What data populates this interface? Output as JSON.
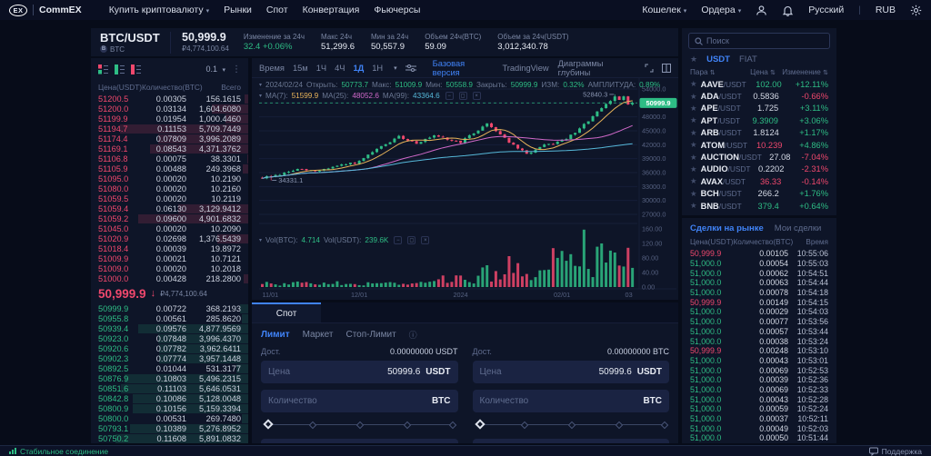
{
  "colors": {
    "green": "#2ebd85",
    "red": "#f0486d",
    "blue": "#4083f7",
    "ma7": "#e8b45a",
    "ma25": "#d069c9",
    "ma99": "#56b8d9",
    "grid": "#161e38",
    "axis_text": "#566180"
  },
  "topnav": {
    "logo": "CommEX",
    "items": [
      {
        "label": "Купить криптовалюту",
        "caret": true
      },
      {
        "label": "Рынки"
      },
      {
        "label": "Спот"
      },
      {
        "label": "Конвертация"
      },
      {
        "label": "Фьючерсы"
      }
    ],
    "right": {
      "wallet": "Кошелек",
      "orders": "Ордера",
      "lang": "Русский",
      "currency": "RUB"
    }
  },
  "ticker": {
    "pair": "BTC/USDT",
    "base": "BTC",
    "price": "50,999.9",
    "fiat": "₽4,774,100.64",
    "stats": [
      {
        "label": "Изменение за 24ч",
        "value": "32.4 +0.06%",
        "cls": "green"
      },
      {
        "label": "Макс 24ч",
        "value": "51,299.6"
      },
      {
        "label": "Мин за 24ч",
        "value": "50,557.9"
      },
      {
        "label": "Объем 24ч(BTC)",
        "value": "59.09"
      },
      {
        "label": "Объем за 24ч(USDT)",
        "value": "3,012,340.78"
      }
    ]
  },
  "orderbook": {
    "precision": "0.1",
    "columns": [
      "Цена(USDT)",
      "Количество(BTC)",
      "Всего"
    ],
    "asks": [
      [
        "51200.5",
        "0.00305",
        "156.1615"
      ],
      [
        "51200.0",
        "0.03134",
        "1,604.6080"
      ],
      [
        "51199.9",
        "0.01954",
        "1,000.4460"
      ],
      [
        "51194.7",
        "0.11153",
        "5,709.7449"
      ],
      [
        "51174.4",
        "0.07809",
        "3,996.2089"
      ],
      [
        "51169.1",
        "0.08543",
        "4,371.3762"
      ],
      [
        "51106.8",
        "0.00075",
        "38.3301"
      ],
      [
        "51105.9",
        "0.00488",
        "249.3968"
      ],
      [
        "51095.0",
        "0.00020",
        "10.2190"
      ],
      [
        "51080.0",
        "0.00020",
        "10.2160"
      ],
      [
        "51059.5",
        "0.00020",
        "10.2119"
      ],
      [
        "51059.4",
        "0.06130",
        "3,129.9412"
      ],
      [
        "51059.2",
        "0.09600",
        "4,901.6832"
      ],
      [
        "51045.0",
        "0.00020",
        "10.2090"
      ],
      [
        "51020.9",
        "0.02698",
        "1,376.5439"
      ],
      [
        "51018.4",
        "0.00039",
        "19.8972"
      ],
      [
        "51009.9",
        "0.00021",
        "10.7121"
      ],
      [
        "51009.0",
        "0.00020",
        "10.2018"
      ],
      [
        "51000.0",
        "0.00428",
        "218.2800"
      ]
    ],
    "mid": {
      "price": "50,999.9",
      "direction": "down",
      "fiat": "₽4,774,100.64"
    },
    "bids": [
      [
        "50999.9",
        "0.00722",
        "368.2193"
      ],
      [
        "50955.8",
        "0.00561",
        "285.8620"
      ],
      [
        "50939.4",
        "0.09576",
        "4,877.9569"
      ],
      [
        "50923.0",
        "0.07848",
        "3,996.4370"
      ],
      [
        "50920.6",
        "0.07782",
        "3,962.6411"
      ],
      [
        "50902.3",
        "0.07774",
        "3,957.1448"
      ],
      [
        "50892.5",
        "0.01044",
        "531.3177"
      ],
      [
        "50876.9",
        "0.10803",
        "5,496.2315"
      ],
      [
        "50851.6",
        "0.11103",
        "5,646.0531"
      ],
      [
        "50842.8",
        "0.10086",
        "5,128.0048"
      ],
      [
        "50800.9",
        "0.10156",
        "5,159.3394"
      ],
      [
        "50800.0",
        "0.00531",
        "269.7480"
      ],
      [
        "50793.1",
        "0.10389",
        "5,276.8952"
      ],
      [
        "50750.2",
        "0.11608",
        "5,891.0832"
      ]
    ]
  },
  "chart": {
    "intervals": [
      "Время",
      "15м",
      "1Ч",
      "4Ч",
      "1Д",
      "1Н"
    ],
    "active_interval": "1Д",
    "views": [
      "Базовая версия",
      "TradingView",
      "Диаграммы глубины"
    ],
    "active_view": "Базовая версия",
    "ohlc_legend": {
      "date": "2024/02/24",
      "items": [
        {
          "label": "Открыть:",
          "value": "50773.7"
        },
        {
          "label": "Макс:",
          "value": "51009.9"
        },
        {
          "label": "Мин:",
          "value": "50558.9"
        },
        {
          "label": "Закрыть:",
          "value": "50999.9"
        },
        {
          "label": "ИЗМ:",
          "value": "0.32%"
        },
        {
          "label": "АМПЛИТУДА:",
          "value": "0.89%"
        }
      ]
    },
    "ma_legend": [
      {
        "label": "MA(7):",
        "value": "51599.9",
        "color": "#e8b45a"
      },
      {
        "label": "MA(25):",
        "value": "48052.6",
        "color": "#d069c9"
      },
      {
        "label": "MA(99):",
        "value": "43364.6",
        "color": "#56b8d9"
      }
    ],
    "vol_legend": [
      {
        "label": "Vol(BTC):",
        "value": "4.714"
      },
      {
        "label": "Vol(USDT):",
        "value": "239.6K"
      }
    ]
  },
  "chart_data": {
    "type": "candlestick",
    "title": "BTC/USDT 1D",
    "last_price": 50999.9,
    "visible_candle": {
      "date": "2024/02/24",
      "open": 50773.7,
      "high": 51009.9,
      "low": 50558.9,
      "close": 50999.9,
      "change_pct": 0.32,
      "amplitude_pct": 0.89
    },
    "ma": {
      "MA7": 51599.9,
      "MA25": 48052.6,
      "MA99": 43364.6
    },
    "volume_legend": {
      "btc": 4.714,
      "usdt": "239.6K"
    },
    "high_marker": 52840.3,
    "low_marker": 34331.1,
    "price_axis": {
      "max": 54000,
      "min": 27000,
      "step": 3000
    },
    "current_price_label": "50999.9",
    "vol_axis": [
      160,
      120,
      80,
      40,
      0
    ],
    "x_ticks": [
      {
        "label": "11/01",
        "i": 0
      },
      {
        "label": "12/01",
        "i": 22
      },
      {
        "label": "2024",
        "i": 45
      },
      {
        "label": "02/01",
        "i": 68
      },
      {
        "label": "03",
        "i": 84
      }
    ],
    "candle_count": 85,
    "waypoints": [
      [
        0,
        34900
      ],
      [
        4,
        35600
      ],
      [
        8,
        36700
      ],
      [
        12,
        36300
      ],
      [
        16,
        37200
      ],
      [
        22,
        38300
      ],
      [
        26,
        41000
      ],
      [
        31,
        43700
      ],
      [
        35,
        42400
      ],
      [
        39,
        43800
      ],
      [
        43,
        42900
      ],
      [
        45,
        42600
      ],
      [
        48,
        44500
      ],
      [
        51,
        46600
      ],
      [
        54,
        44300
      ],
      [
        57,
        41800
      ],
      [
        60,
        40000
      ],
      [
        64,
        41800
      ],
      [
        68,
        42800
      ],
      [
        71,
        44500
      ],
      [
        74,
        47200
      ],
      [
        77,
        49800
      ],
      [
        79,
        51500
      ],
      [
        80,
        52300
      ],
      [
        81,
        51800
      ],
      [
        82,
        52500
      ],
      [
        83,
        50900
      ],
      [
        84,
        51000
      ]
    ],
    "noise": {
      "close": 240,
      "wick": 260
    },
    "seed": 9,
    "vol_env": [
      [
        40,
        14
      ],
      [
        50,
        30
      ],
      [
        64,
        55
      ],
      [
        120,
        95
      ]
    ],
    "vol_spikes": {
      "51": 60,
      "56": 85,
      "73": 158,
      "77": 120,
      "80": 95,
      "83": 108
    }
  },
  "spot": {
    "tab": "Спот",
    "order_types": [
      "Лимит",
      "Маркет",
      "Стоп-Лимит"
    ],
    "active_type": "Лимит",
    "buy": {
      "avail_label": "Дост.",
      "avail": "0.00000000 USDT",
      "price_label": "Цена",
      "price": "50999.6",
      "price_unit": "USDT",
      "qty_label": "Количество",
      "qty_unit": "BTC"
    },
    "sell": {
      "avail_label": "Дост.",
      "avail": "0.00000000 BTC",
      "price_label": "Цена",
      "price": "50999.6",
      "price_unit": "USDT",
      "qty_label": "Количество",
      "qty_unit": "BTC"
    }
  },
  "pairs": {
    "search_placeholder": "Поиск",
    "tabs": [
      "USDT",
      "FIAT"
    ],
    "active_tab": "USDT",
    "columns": [
      "Пара",
      "Цена",
      "Изменение"
    ],
    "rows": [
      {
        "base": "AAVE",
        "quote": "/USDT",
        "price": "102.00",
        "price_cls": "green",
        "change": "+12.11%",
        "change_cls": "green"
      },
      {
        "base": "ADA",
        "quote": "/USDT",
        "price": "0.5836",
        "price_cls": "",
        "change": "-0.66%",
        "change_cls": "red"
      },
      {
        "base": "APE",
        "quote": "/USDT",
        "price": "1.725",
        "price_cls": "",
        "change": "+3.11%",
        "change_cls": "green"
      },
      {
        "base": "APT",
        "quote": "/USDT",
        "price": "9.3909",
        "price_cls": "green",
        "change": "+3.06%",
        "change_cls": "green"
      },
      {
        "base": "ARB",
        "quote": "/USDT",
        "price": "1.8124",
        "price_cls": "",
        "change": "+1.17%",
        "change_cls": "green"
      },
      {
        "base": "ATOM",
        "quote": "/USDT",
        "price": "10.239",
        "price_cls": "red",
        "change": "+4.86%",
        "change_cls": "green"
      },
      {
        "base": "AUCTION",
        "quote": "/USDT",
        "price": "27.08",
        "price_cls": "",
        "change": "-7.04%",
        "change_cls": "red"
      },
      {
        "base": "AUDIO",
        "quote": "/USDT",
        "price": "0.2202",
        "price_cls": "",
        "change": "-2.31%",
        "change_cls": "red"
      },
      {
        "base": "AVAX",
        "quote": "/USDT",
        "price": "36.33",
        "price_cls": "red",
        "change": "-0.14%",
        "change_cls": "red"
      },
      {
        "base": "BCH",
        "quote": "/USDT",
        "price": "266.2",
        "price_cls": "",
        "change": "+1.76%",
        "change_cls": "green"
      },
      {
        "base": "BNB",
        "quote": "/USDT",
        "price": "379.4",
        "price_cls": "green",
        "change": "+0.64%",
        "change_cls": "green"
      }
    ]
  },
  "trades": {
    "tabs": [
      "Сделки на рынке",
      "Мои сделки"
    ],
    "active_tab": "Сделки на рынке",
    "columns": [
      "Цена(USDT)",
      "Количество(BTC)",
      "Время"
    ],
    "rows": [
      {
        "price": "50,999.9",
        "side": "red",
        "qty": "0.00105",
        "time": "10:55:06"
      },
      {
        "price": "51,000.0",
        "side": "green",
        "qty": "0.00054",
        "time": "10:55:03"
      },
      {
        "price": "51,000.0",
        "side": "green",
        "qty": "0.00062",
        "time": "10:54:51"
      },
      {
        "price": "51,000.0",
        "side": "green",
        "qty": "0.00063",
        "time": "10:54:44"
      },
      {
        "price": "51,000.0",
        "side": "green",
        "qty": "0.00078",
        "time": "10:54:18"
      },
      {
        "price": "50,999.9",
        "side": "red",
        "qty": "0.00149",
        "time": "10:54:15"
      },
      {
        "price": "51,000.0",
        "side": "green",
        "qty": "0.00029",
        "time": "10:54:03"
      },
      {
        "price": "51,000.0",
        "side": "green",
        "qty": "0.00077",
        "time": "10:53:56"
      },
      {
        "price": "51,000.0",
        "side": "green",
        "qty": "0.00057",
        "time": "10:53:44"
      },
      {
        "price": "51,000.0",
        "side": "green",
        "qty": "0.00038",
        "time": "10:53:24"
      },
      {
        "price": "50,999.9",
        "side": "red",
        "qty": "0.00248",
        "time": "10:53:10"
      },
      {
        "price": "51,000.0",
        "side": "green",
        "qty": "0.00043",
        "time": "10:53:01"
      },
      {
        "price": "51,000.0",
        "side": "green",
        "qty": "0.00069",
        "time": "10:52:53"
      },
      {
        "price": "51,000.0",
        "side": "green",
        "qty": "0.00039",
        "time": "10:52:36"
      },
      {
        "price": "51,000.0",
        "side": "green",
        "qty": "0.00069",
        "time": "10:52:33"
      },
      {
        "price": "51,000.0",
        "side": "green",
        "qty": "0.00043",
        "time": "10:52:28"
      },
      {
        "price": "51,000.0",
        "side": "green",
        "qty": "0.00059",
        "time": "10:52:24"
      },
      {
        "price": "51,000.0",
        "side": "green",
        "qty": "0.00037",
        "time": "10:52:11"
      },
      {
        "price": "51,000.0",
        "side": "green",
        "qty": "0.00049",
        "time": "10:52:03"
      },
      {
        "price": "51,000.0",
        "side": "green",
        "qty": "0.00050",
        "time": "10:51:44"
      }
    ]
  },
  "footer": {
    "connection": "Стабильное соединение",
    "support": "Поддержка"
  }
}
